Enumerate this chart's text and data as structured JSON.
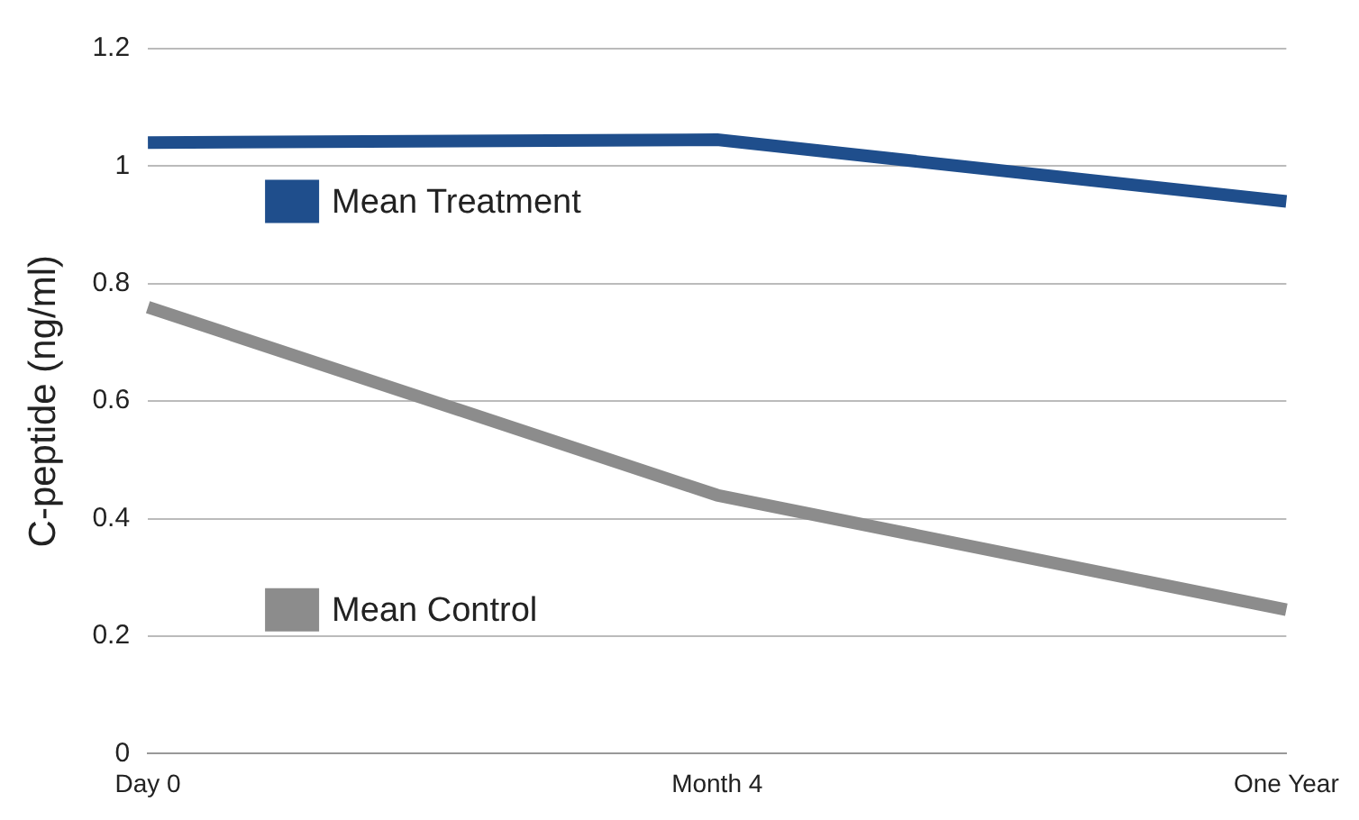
{
  "chart_data": {
    "type": "line",
    "ylabel": "C-peptide (ng/ml)",
    "categories": [
      "Day 0",
      "Month 4",
      "One Year"
    ],
    "series": [
      {
        "name": "Mean Treatment",
        "color": "#1f4e8c",
        "values": [
          1.04,
          1.045,
          0.94
        ]
      },
      {
        "name": "Mean Control",
        "color": "#8c8c8c",
        "values": [
          0.76,
          0.44,
          0.245
        ]
      }
    ],
    "ylim": [
      0,
      1.2
    ],
    "yticks": [
      0,
      0.2,
      0.4,
      0.6,
      0.8,
      1,
      1.2
    ],
    "grid": "y",
    "legend": "left",
    "marker": "none",
    "line_style": "solid"
  }
}
